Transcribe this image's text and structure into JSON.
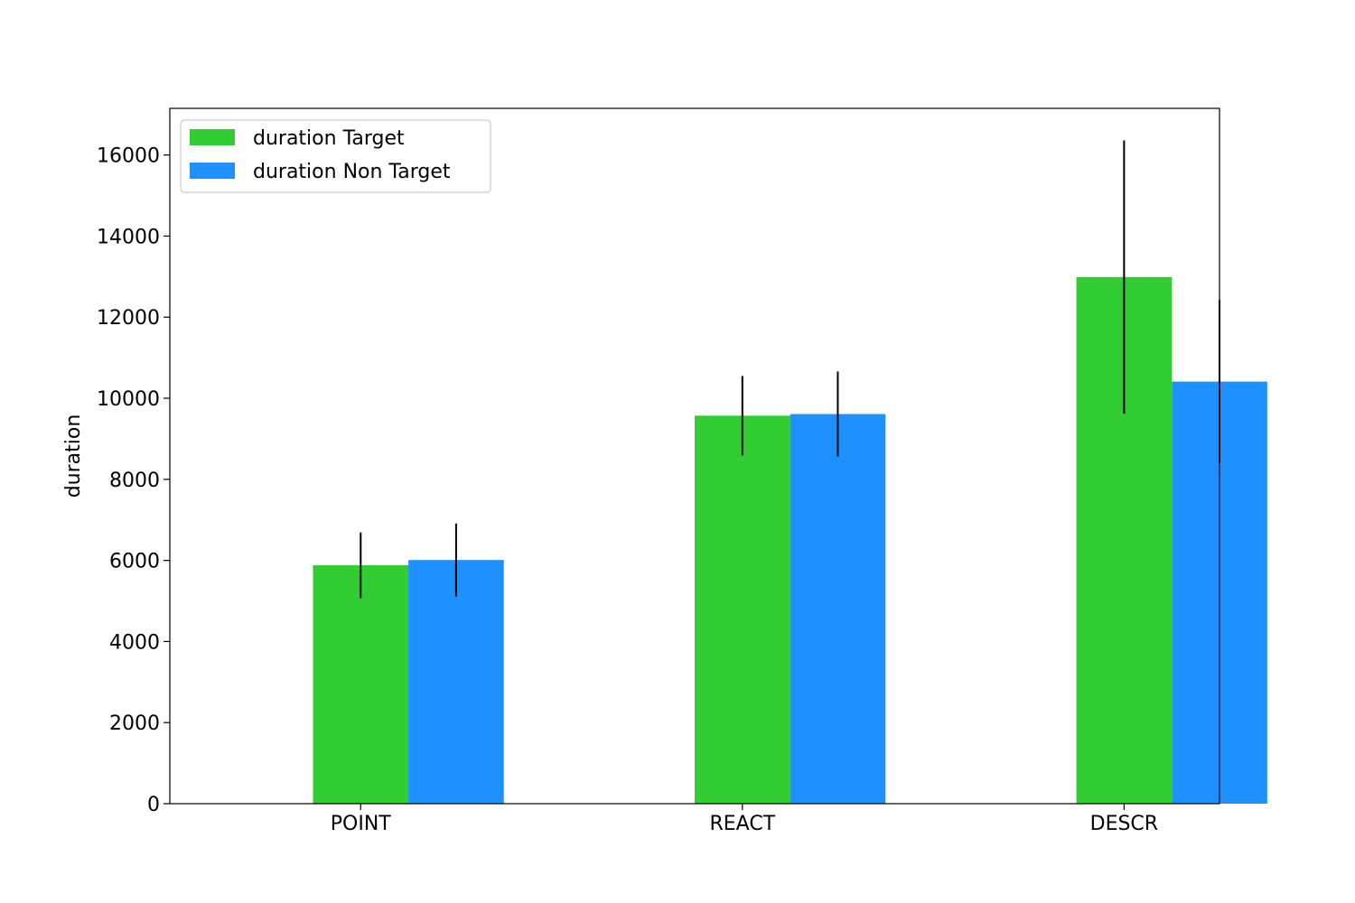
{
  "chart_data": {
    "type": "bar",
    "title": "",
    "xlabel": "",
    "ylabel": "duration",
    "ylim": [
      0,
      17150
    ],
    "yticks": [
      0,
      2000,
      4000,
      6000,
      8000,
      10000,
      12000,
      14000,
      16000
    ],
    "categories": [
      "POINT",
      "REACT",
      "DESCR"
    ],
    "series": [
      {
        "name": "duration Target",
        "color": "#32cd32",
        "values": [
          5880,
          9570,
          12990
        ],
        "errors": [
          810,
          980,
          3370
        ]
      },
      {
        "name": "duration Non Target",
        "color": "#1e90ff",
        "values": [
          6010,
          9610,
          10410
        ],
        "errors": [
          900,
          1050,
          2010
        ]
      }
    ],
    "grid": false,
    "legend_position": "top-left",
    "errorbar_color": "#000000"
  }
}
